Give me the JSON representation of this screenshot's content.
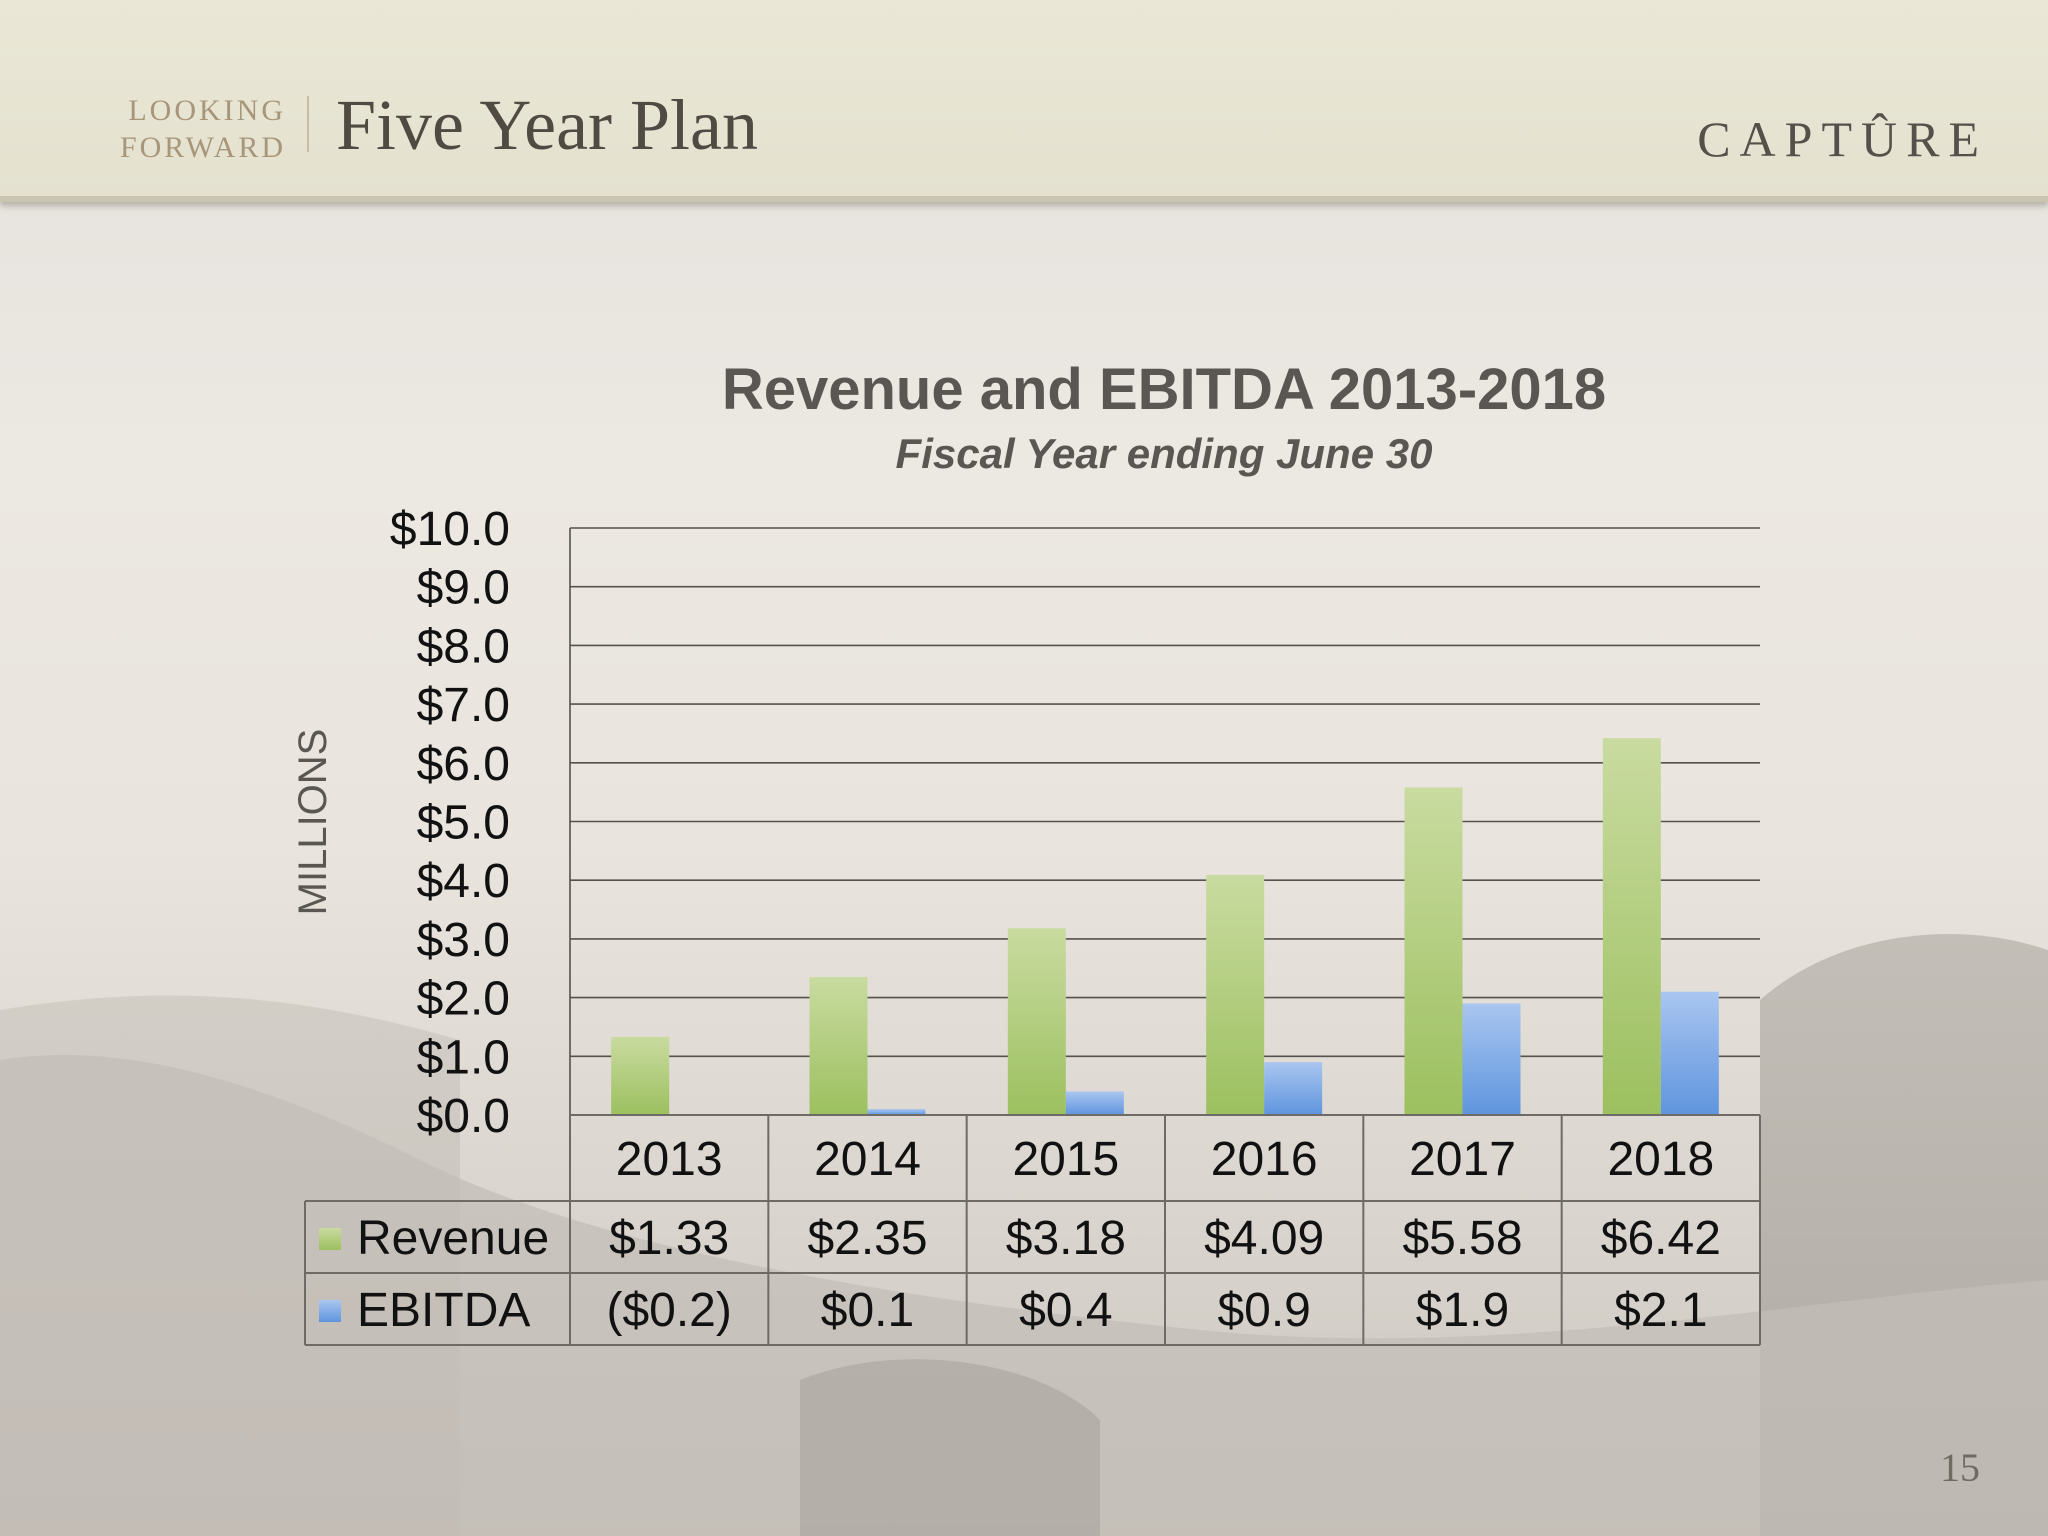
{
  "header": {
    "kicker_line1": "LOOKING",
    "kicker_line2": "FORWARD",
    "title": "Five Year Plan",
    "brand": "CAPTÛRE"
  },
  "page_number": "15",
  "colors": {
    "revenue": "#9cc05f",
    "ebitda": "#5f95de"
  },
  "chart_data": {
    "type": "bar",
    "title": "Revenue and EBITDA 2013-2018",
    "subtitle": "Fiscal Year ending June 30",
    "ylabel": "MILLIONS",
    "xlabel": "",
    "ylim": [
      0,
      10
    ],
    "yticks": [
      "$0.0",
      "$1.0",
      "$2.0",
      "$3.0",
      "$4.0",
      "$5.0",
      "$6.0",
      "$7.0",
      "$8.0",
      "$9.0",
      "$10.0"
    ],
    "grid": true,
    "legend": "data-table",
    "categories": [
      "2013",
      "2014",
      "2015",
      "2016",
      "2017",
      "2018"
    ],
    "series": [
      {
        "name": "Revenue",
        "values": [
          1.33,
          2.35,
          3.18,
          4.09,
          5.58,
          6.42
        ],
        "labels": [
          "$1.33",
          "$2.35",
          "$3.18",
          "$4.09",
          "$5.58",
          "$6.42"
        ]
      },
      {
        "name": "EBITDA",
        "values": [
          -0.2,
          0.1,
          0.4,
          0.9,
          1.9,
          2.1
        ],
        "labels": [
          "($0.2)",
          "$0.1",
          "$0.4",
          "$0.9",
          "$1.9",
          "$2.1"
        ]
      }
    ]
  }
}
